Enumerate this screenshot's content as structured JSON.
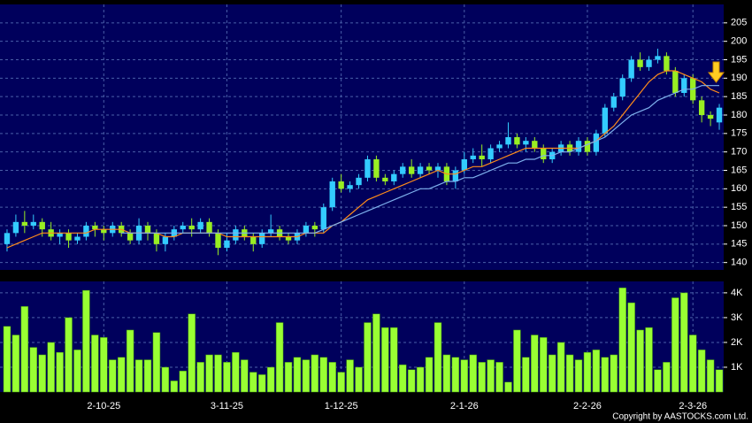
{
  "chart_data": [
    {
      "type": "candlestick",
      "categories": [
        null,
        null,
        null,
        null,
        null,
        null,
        null,
        null,
        null,
        null,
        null,
        "2-10-25",
        null,
        null,
        null,
        null,
        null,
        null,
        null,
        null,
        null,
        null,
        null,
        null,
        null,
        "3-11-25",
        null,
        null,
        null,
        null,
        null,
        null,
        null,
        null,
        null,
        null,
        null,
        null,
        "1-12-25",
        null,
        null,
        null,
        null,
        null,
        null,
        null,
        null,
        null,
        null,
        null,
        null,
        null,
        "2-1-26",
        null,
        null,
        null,
        null,
        null,
        null,
        null,
        null,
        null,
        null,
        null,
        null,
        null,
        "2-2-26",
        null,
        null,
        null,
        null,
        null,
        null,
        null,
        null,
        null,
        null,
        null,
        "2-3-26",
        null,
        null,
        null
      ],
      "open": [
        145,
        148,
        151,
        150,
        151,
        149,
        147,
        148,
        146,
        147,
        150,
        149,
        148,
        150,
        148,
        146,
        150,
        148,
        145,
        147,
        149,
        150,
        149,
        151,
        148,
        144,
        146,
        149,
        147,
        145,
        148,
        149,
        147,
        146,
        148,
        150,
        149,
        155,
        162,
        160,
        161,
        163,
        168,
        163,
        162,
        164,
        166,
        164,
        166,
        165,
        166,
        162,
        165,
        168,
        169,
        168,
        171,
        172,
        174,
        172,
        173,
        171,
        168,
        170,
        172,
        170,
        173,
        170,
        175,
        182,
        185,
        190,
        195,
        193,
        195,
        196,
        192,
        186,
        190,
        184,
        180,
        178
      ],
      "high": [
        149,
        153,
        154,
        153,
        152,
        151,
        149,
        149,
        148,
        151,
        151,
        150,
        151,
        151,
        149,
        152,
        151,
        149,
        148,
        150,
        151,
        152,
        152,
        152,
        149,
        148,
        150,
        150,
        148,
        149,
        153,
        150,
        148,
        149,
        151,
        151,
        156,
        163,
        164,
        162,
        164,
        169,
        169,
        164,
        165,
        167,
        168,
        167,
        167,
        167,
        167,
        166,
        170,
        171,
        172,
        172,
        173,
        178,
        175,
        174,
        174,
        172,
        171,
        173,
        173,
        174,
        174,
        176,
        183,
        186,
        191,
        196,
        197,
        196,
        198,
        197,
        193,
        191,
        191,
        185,
        181,
        183
      ],
      "low": [
        143,
        147,
        148,
        149,
        147,
        146,
        145,
        144,
        145,
        146,
        147,
        146,
        147,
        147,
        145,
        145,
        146,
        143,
        143,
        146,
        148,
        147,
        148,
        147,
        142,
        143,
        145,
        146,
        143,
        144,
        147,
        146,
        145,
        145,
        147,
        147,
        148,
        154,
        159,
        159,
        160,
        162,
        162,
        161,
        161,
        163,
        163,
        163,
        164,
        163,
        161,
        160,
        164,
        167,
        166,
        167,
        170,
        171,
        171,
        170,
        170,
        167,
        167,
        169,
        169,
        169,
        169,
        169,
        174,
        181,
        184,
        189,
        192,
        192,
        194,
        191,
        185,
        185,
        183,
        178,
        177,
        176
      ],
      "close": [
        148,
        151,
        150,
        151,
        149,
        147,
        148,
        146,
        147,
        150,
        149,
        148,
        150,
        148,
        146,
        150,
        148,
        145,
        147,
        149,
        150,
        149,
        151,
        148,
        144,
        146,
        149,
        147,
        145,
        148,
        149,
        147,
        146,
        148,
        150,
        149,
        155,
        162,
        160,
        161,
        163,
        168,
        163,
        162,
        164,
        166,
        164,
        166,
        165,
        166,
        162,
        165,
        168,
        169,
        168,
        171,
        172,
        174,
        172,
        173,
        171,
        168,
        170,
        172,
        170,
        173,
        170,
        175,
        182,
        185,
        190,
        195,
        193,
        195,
        196,
        192,
        186,
        190,
        184,
        180,
        179,
        182
      ],
      "up_color": "#33ccff",
      "down_color": "#99ee22",
      "lines": [
        {
          "color": "#ff8c1a",
          "values": [
            144,
            145,
            146,
            147,
            148,
            148,
            148,
            148,
            148,
            148,
            149,
            149,
            149,
            149,
            148,
            148,
            148,
            148,
            147,
            147,
            148,
            148,
            148,
            148,
            148,
            147,
            147,
            147,
            147,
            147,
            147,
            147,
            147,
            147,
            148,
            148,
            148,
            150,
            151,
            153,
            155,
            157,
            158,
            159,
            160,
            161,
            162,
            163,
            164,
            165,
            164,
            164,
            165,
            166,
            166,
            167,
            168,
            169,
            170,
            171,
            171,
            171,
            171,
            171,
            171,
            171,
            172,
            173,
            175,
            177,
            180,
            183,
            186,
            189,
            191,
            192,
            192,
            191,
            190,
            189,
            187,
            186
          ]
        },
        {
          "color": "#7fb2ee",
          "values": [
            null,
            null,
            null,
            null,
            null,
            null,
            null,
            null,
            null,
            null,
            null,
            null,
            null,
            148,
            148,
            148,
            148,
            148,
            148,
            148,
            148,
            148,
            148,
            148,
            148,
            148,
            148,
            148,
            148,
            148,
            148,
            148,
            148,
            148,
            148,
            148,
            149,
            150,
            151,
            152,
            153,
            154,
            155,
            156,
            157,
            158,
            159,
            160,
            160,
            161,
            162,
            162,
            163,
            163,
            164,
            165,
            166,
            167,
            167,
            168,
            168,
            169,
            169,
            170,
            170,
            171,
            172,
            173,
            174,
            176,
            178,
            180,
            181,
            182,
            184,
            185,
            186,
            187,
            187,
            188,
            188,
            188
          ]
        }
      ],
      "ylim": [
        138,
        210
      ],
      "yticks": [
        140,
        145,
        150,
        155,
        160,
        165,
        170,
        175,
        180,
        185,
        190,
        195,
        200,
        205
      ],
      "grid": true
    },
    {
      "type": "bar",
      "values": [
        2650,
        2300,
        3450,
        1800,
        1500,
        2000,
        1600,
        3000,
        1700,
        4100,
        2300,
        2200,
        1300,
        1400,
        2500,
        1300,
        1300,
        2400,
        1000,
        450,
        850,
        3150,
        1200,
        1500,
        1500,
        1200,
        1600,
        1300,
        800,
        700,
        1000,
        2800,
        1200,
        1400,
        1300,
        1500,
        1400,
        1200,
        800,
        1300,
        1000,
        2800,
        3150,
        2600,
        2600,
        1100,
        900,
        1000,
        1400,
        2800,
        1500,
        1400,
        1300,
        1500,
        1200,
        1300,
        1200,
        400,
        2500,
        1400,
        2300,
        2200,
        1500,
        2000,
        1500,
        1300,
        1600,
        1700,
        1400,
        1500,
        4200,
        3600,
        2500,
        2600,
        900,
        1200,
        3800,
        4000,
        2300,
        1700,
        1300,
        900
      ],
      "color": "#99ff33",
      "ylim": [
        0,
        4460
      ],
      "yticks": [
        {
          "value": 1000,
          "label": "1K"
        },
        {
          "value": 2000,
          "label": "2K"
        },
        {
          "value": 3000,
          "label": "3K"
        },
        {
          "value": 4000,
          "label": "4K"
        }
      ],
      "grid": true
    }
  ],
  "copyright": "Copyright by AASTOCKS.com Ltd."
}
